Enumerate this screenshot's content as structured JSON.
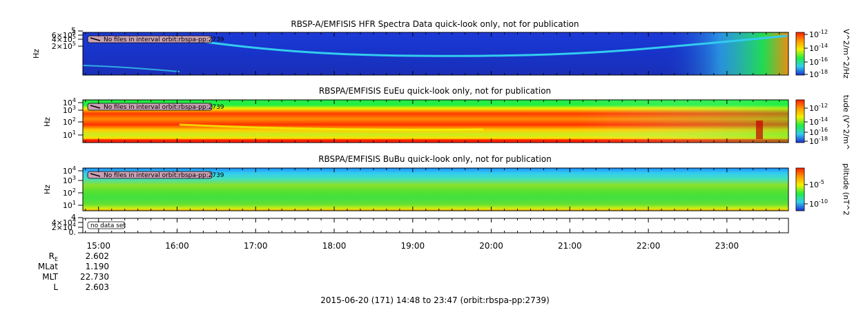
{
  "colors": {
    "deep_blue": "#1a2fd0",
    "cyan": "#33ccee",
    "green": "#22ee44",
    "yellow": "#f2f200",
    "orange": "#ff9900",
    "red": "#ff1e00",
    "dark_red": "#c80000"
  },
  "chart_data": [
    {
      "type": "heatmap",
      "title": "RBSP-A/EMFISIS  HFR Spectra Data quick-look only, not for publication",
      "ylabel": "Hz",
      "y_ticks": [
        {
          "base": "6",
          "exp": "5"
        },
        {
          "base": "4",
          "exp": "5"
        },
        {
          "base": "2",
          "exp": "5"
        },
        {
          "plain": "5"
        }
      ],
      "colorbar_label": "V^2/m^2/Hz",
      "colorbar_ticks": [
        "-12",
        "-14",
        "-16",
        "-18"
      ],
      "notice": "No files in interval orbit:rbspa-pp:2739"
    },
    {
      "type": "heatmap",
      "title": "RBSPA/EMFISIS  EuEu quick-look only, not for publication",
      "ylabel": "Hz",
      "y_ticks": [
        {
          "base": "10",
          "exp": "4"
        },
        {
          "base": "10",
          "exp": "3"
        },
        {
          "base": "10",
          "exp": "2"
        },
        {
          "base": "10",
          "exp": "1"
        }
      ],
      "colorbar_label": "tude (V^2/m^",
      "colorbar_ticks": [
        "-12",
        "-14",
        "-16",
        "-18"
      ],
      "notice": "No files in interval orbit:rbspa-pp:2739"
    },
    {
      "type": "heatmap",
      "title": "RBSPA/EMFISIS  BuBu quick-look only, not for publication",
      "ylabel": "Hz",
      "y_ticks": [
        {
          "base": "10",
          "exp": "4"
        },
        {
          "base": "10",
          "exp": "3"
        },
        {
          "base": "10",
          "exp": "2"
        },
        {
          "base": "10",
          "exp": "1"
        }
      ],
      "colorbar_label": "plitude (nT^2",
      "colorbar_ticks": [
        "-5",
        "-10"
      ],
      "notice": "No files in interval orbit:rbspa-pp:2739"
    },
    {
      "type": "line",
      "title": "",
      "ylabel": "",
      "y_ticks": [
        {
          "base": "4",
          "exp": "4"
        },
        {
          "base": "2",
          "exp": "4"
        },
        {
          "plain": "4"
        },
        {
          "plain": "0."
        }
      ],
      "notice": "no data set"
    }
  ],
  "x_axis": {
    "tick_labels": [
      "15:00",
      "16:00",
      "17:00",
      "18:00",
      "19:00",
      "20:00",
      "21:00",
      "22:00",
      "23:00"
    ],
    "start": "14:48",
    "end": "23:47"
  },
  "ephemeris": [
    {
      "label": "R",
      "sub": "E",
      "value": "2.602"
    },
    {
      "label": "MLat",
      "sub": "",
      "value": "1.190"
    },
    {
      "label": "MLT",
      "sub": "",
      "value": "22.730"
    },
    {
      "label": "L",
      "sub": "",
      "value": "2.603"
    }
  ],
  "footer": "2015-06-20 (171) 14:48 to 23:47 (orbit:rbspa-pp:2739)"
}
